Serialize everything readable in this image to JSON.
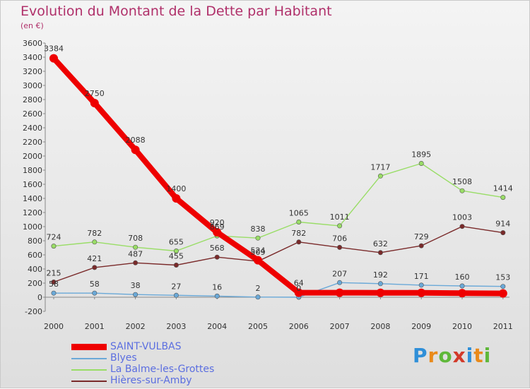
{
  "chart_data": {
    "type": "line",
    "title": "Evolution du Montant de la Dette par Habitant",
    "subtitle": "(en €)",
    "x": [
      "2000",
      "2001",
      "2002",
      "2003",
      "2004",
      "2005",
      "2006",
      "2007",
      "2008",
      "2009",
      "2010",
      "2011"
    ],
    "y_ticks": [
      -200,
      0,
      200,
      400,
      600,
      800,
      1000,
      1200,
      1400,
      1600,
      1800,
      2000,
      2200,
      2400,
      2600,
      2800,
      3000,
      3200,
      3400,
      3600
    ],
    "ylim": [
      -200,
      3600
    ],
    "grid": false,
    "legend_position": "bottom-left",
    "series": [
      {
        "name": "SAINT-VULBAS",
        "color": "#ee0000",
        "values": [
          3384,
          2750,
          2088,
          1400,
          920,
          524,
          64,
          64,
          63,
          62,
          58,
          54
        ],
        "labels": [
          "3384",
          "2750",
          "2088",
          "1400",
          "920",
          "524",
          "64",
          "",
          "",
          "",
          "",
          ""
        ]
      },
      {
        "name": "Blyes",
        "color": "#6aa9d8",
        "values": [
          58,
          58,
          38,
          27,
          16,
          2,
          0,
          207,
          192,
          171,
          160,
          153
        ],
        "labels": [
          "58",
          "58",
          "38",
          "27",
          "16",
          "2",
          "0",
          "207",
          "192",
          "171",
          "160",
          "153"
        ]
      },
      {
        "name": "La Balme-les-Grottes",
        "color": "#99dd66",
        "values": [
          724,
          782,
          708,
          655,
          869,
          838,
          1065,
          1011,
          1717,
          1895,
          1508,
          1414
        ],
        "labels": [
          "724",
          "782",
          "708",
          "655",
          "869",
          "838",
          "1065",
          "1011",
          "1717",
          "1895",
          "1508",
          "1414"
        ]
      },
      {
        "name": "Hières-sur-Amby",
        "color": "#7a2a2a",
        "values": [
          215,
          421,
          487,
          455,
          568,
          509,
          782,
          706,
          632,
          729,
          1003,
          914
        ],
        "labels": [
          "215",
          "421",
          "487",
          "455",
          "568",
          "509",
          "782",
          "706",
          "632",
          "729",
          "1003",
          "914"
        ]
      }
    ]
  },
  "brand": {
    "text": "Proxiti",
    "letters": [
      "P",
      "r",
      "o",
      "x",
      "i",
      "t",
      "i"
    ],
    "colors": [
      "#2f8fd8",
      "#e98a1a",
      "#5fb83a",
      "#d23a2a",
      "#2f8fd8",
      "#e98a1a",
      "#5fb83a"
    ]
  }
}
